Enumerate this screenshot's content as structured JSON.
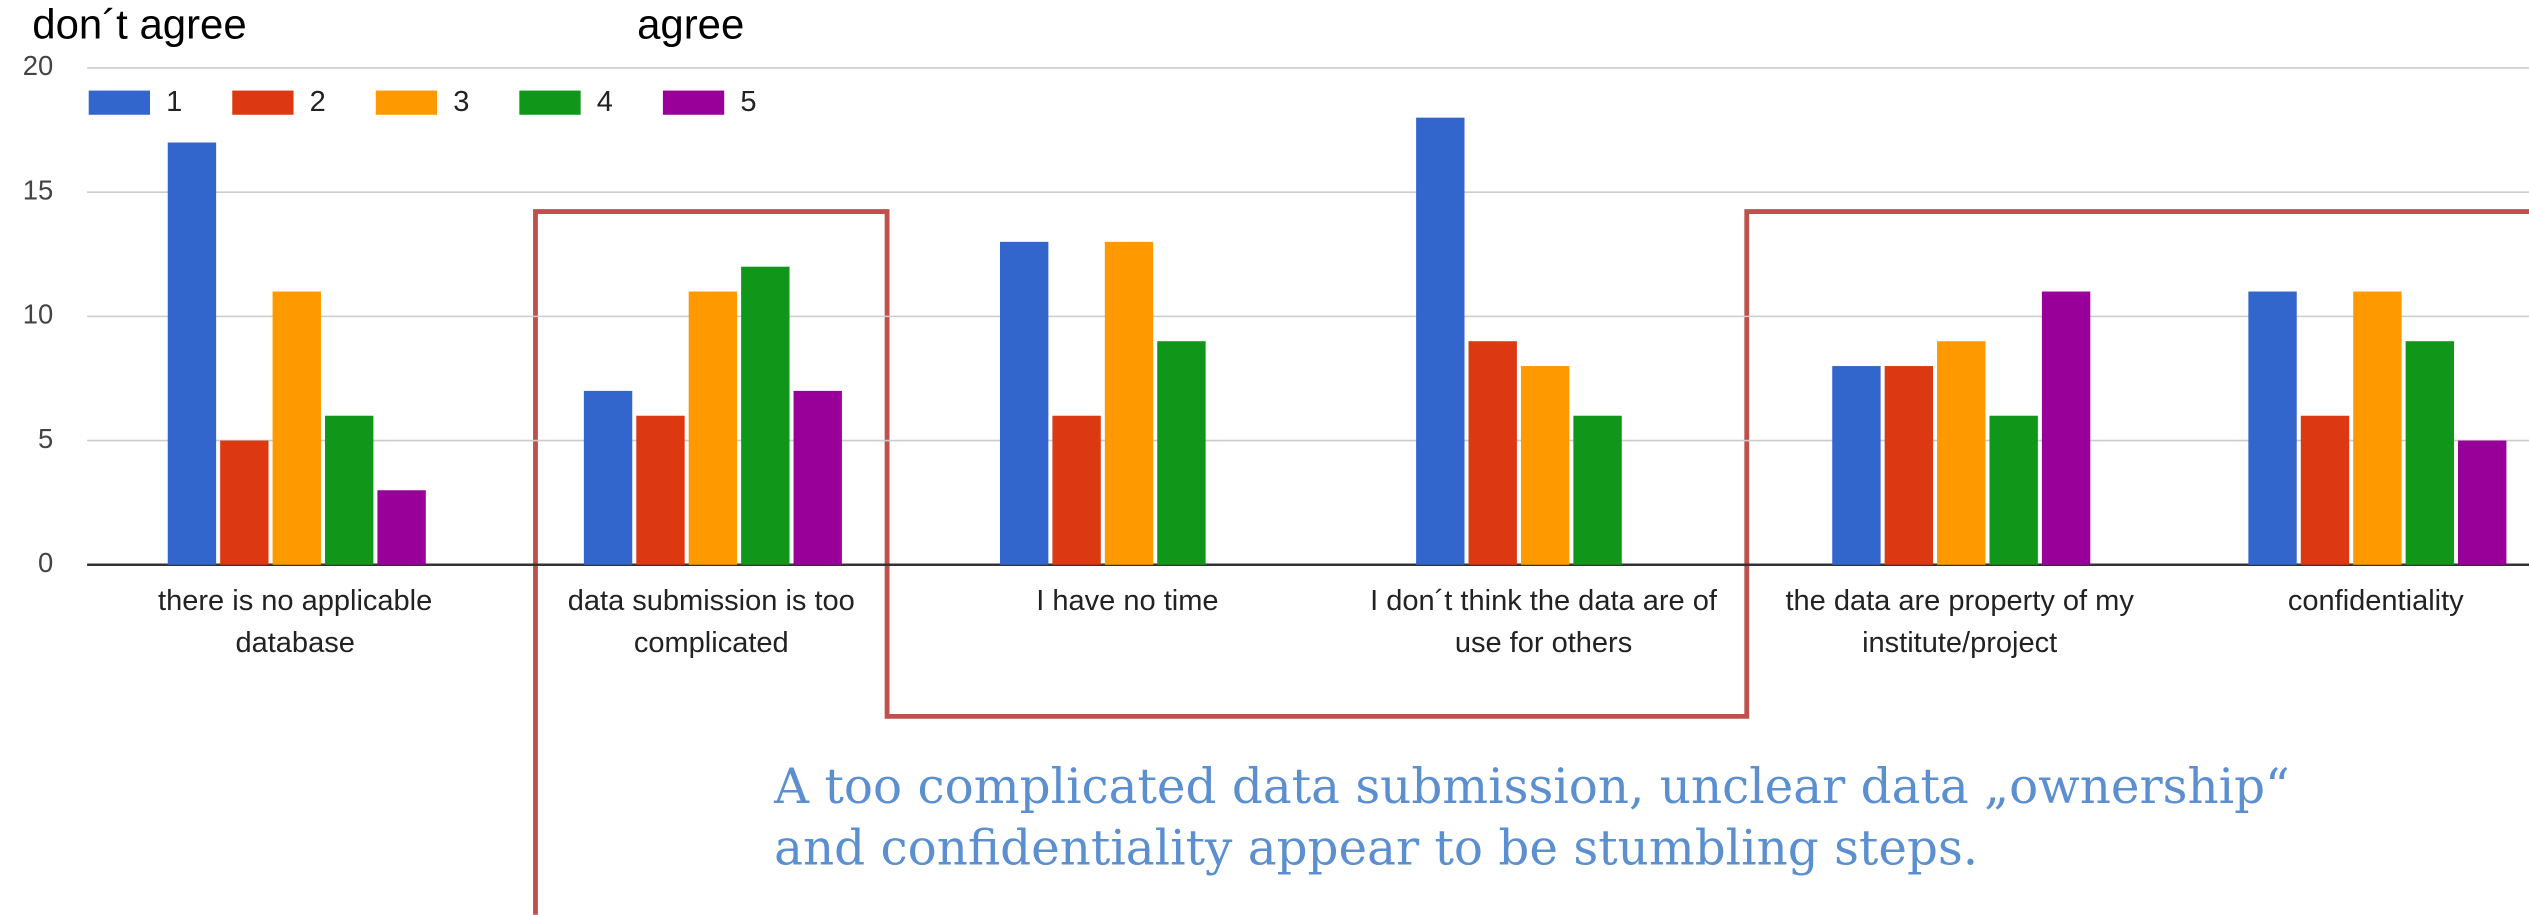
{
  "chart_data": {
    "type": "bar",
    "scale_labels": [
      "don´t agree",
      "agree"
    ],
    "categories": [
      "there is no applicable database",
      "data submission is too complicated",
      "I have no time",
      "I don´t think the data are of use for others",
      "the data are property of my institute/project",
      "confidentiality"
    ],
    "series": [
      {
        "name": "1",
        "color": "#3366cc",
        "values": [
          17,
          7,
          13,
          18,
          8,
          11
        ]
      },
      {
        "name": "2",
        "color": "#dc3912",
        "values": [
          5,
          6,
          6,
          9,
          8,
          6
        ]
      },
      {
        "name": "3",
        "color": "#ff9900",
        "values": [
          11,
          11,
          13,
          8,
          9,
          11
        ]
      },
      {
        "name": "4",
        "color": "#109618",
        "values": [
          6,
          12,
          9,
          6,
          6,
          9
        ]
      },
      {
        "name": "5",
        "color": "#990099",
        "values": [
          3,
          7,
          null,
          null,
          11,
          5
        ]
      }
    ],
    "ylim": [
      0,
      20
    ],
    "yticks": [
      0,
      5,
      10,
      15,
      20
    ],
    "grid": true,
    "legend": "top-left",
    "annotations": [
      "A too complicated data submission, unclear data „ownership“",
      "and confidentiality appear to be stumbling steps."
    ]
  }
}
